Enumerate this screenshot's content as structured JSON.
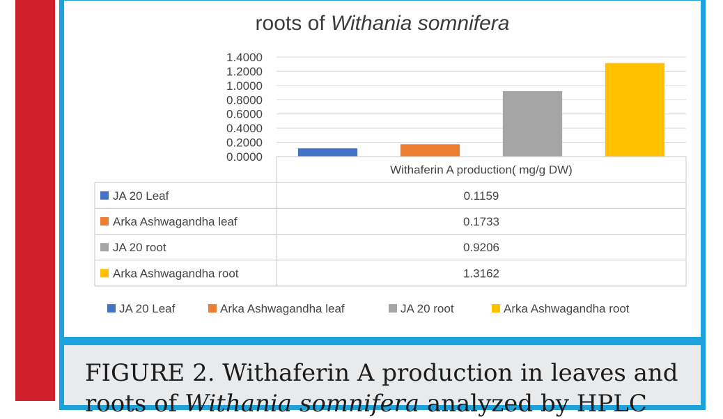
{
  "chart_data": {
    "type": "bar",
    "title_line1": "",
    "title_line2_plain": "roots of ",
    "title_line2_italic": "Withania somnifera",
    "categories": [
      "JA 20 Leaf",
      "Arka Ashwagandha leaf",
      "JA 20 root",
      "Arka Ashwagandha root"
    ],
    "values": [
      0.1159,
      0.1733,
      0.9206,
      1.3162
    ],
    "value_labels": [
      "0.1159",
      "0.1733",
      "0.9206",
      "1.3162"
    ],
    "colors": [
      "#4472c4",
      "#ed7d31",
      "#a5a5a5",
      "#ffc000"
    ],
    "series_name": "Withaferin A production( mg/g DW)",
    "ylim": [
      0,
      1.4
    ],
    "yticks": [
      "0.0000",
      "0.2000",
      "0.4000",
      "0.6000",
      "0.8000",
      "1.0000",
      "1.2000",
      "1.4000"
    ],
    "grid": true,
    "legend_placement": "bottom",
    "data_table": true
  },
  "caption": {
    "line1": "FIGURE 2. Withaferin A production in leaves and",
    "line2_plain1": "roots of ",
    "line2_italic": "Withania somnifera",
    "line2_plain2": " analyzed by HPLC"
  },
  "colors": {
    "red_bar": "#d0202b",
    "frame_blue": "#1ea2dc",
    "caption_bg": "#e9eaeb"
  }
}
